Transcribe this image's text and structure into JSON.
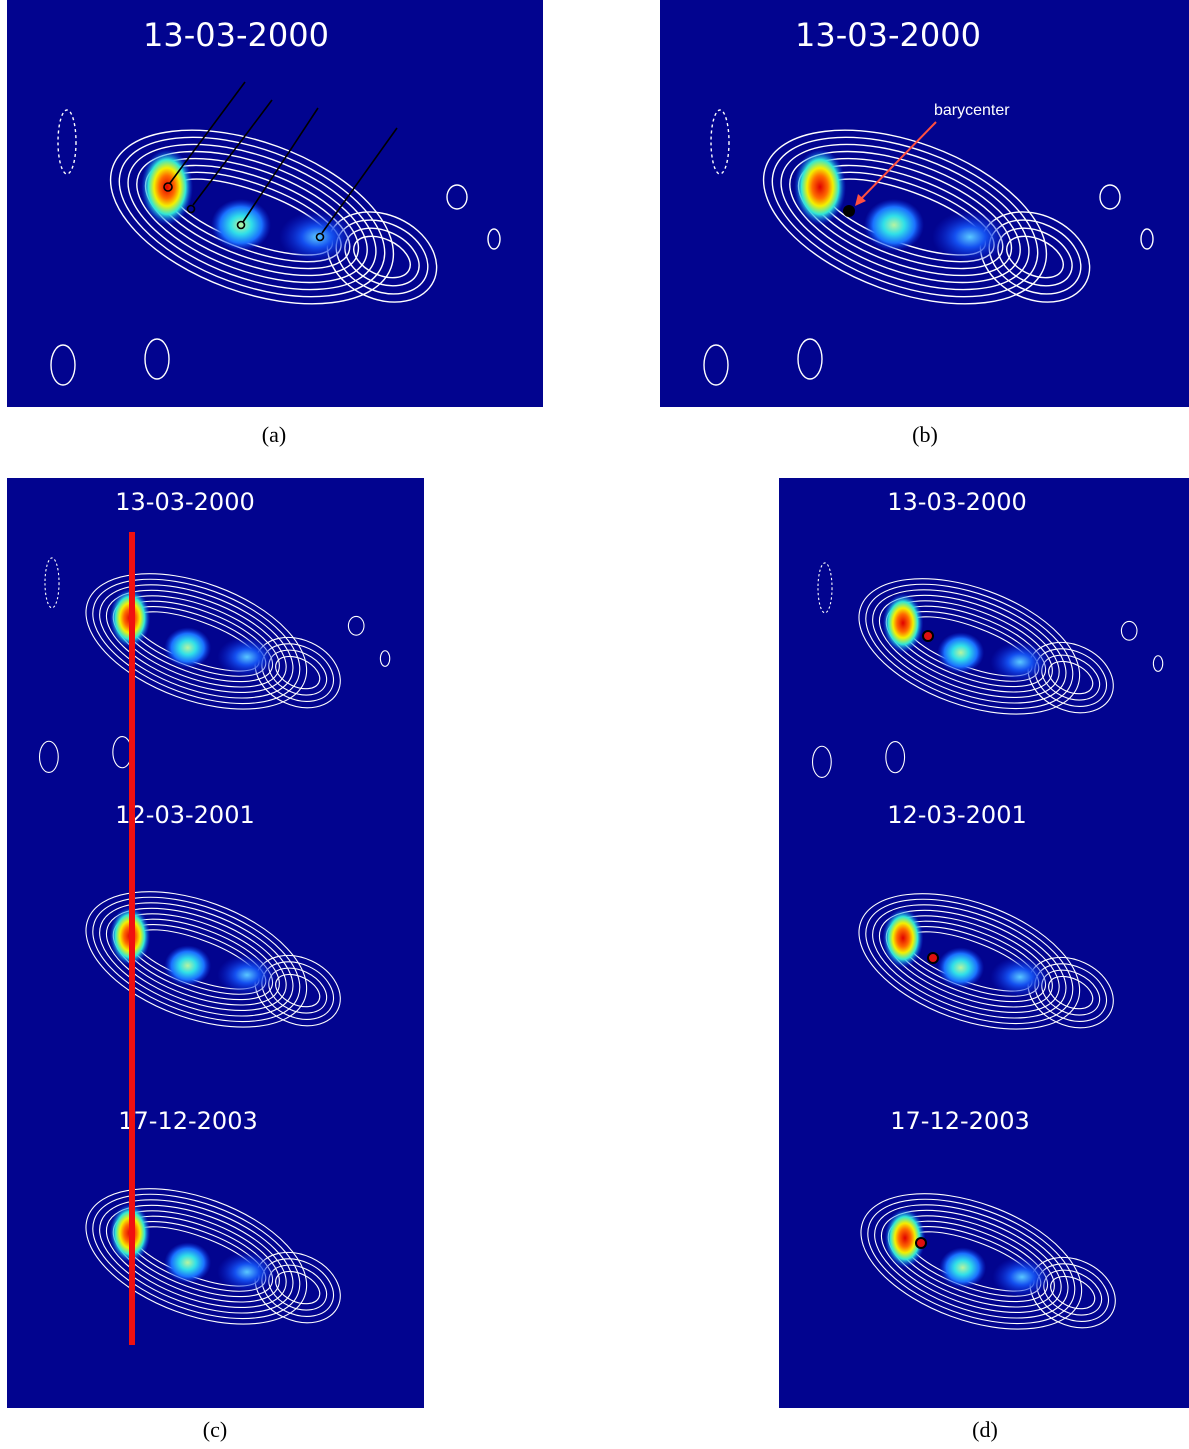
{
  "panels": [
    {
      "caption": "(a)",
      "dates": [
        "13-03-2000"
      ]
    },
    {
      "caption": "(b)",
      "dates": [
        "13-03-2000"
      ],
      "annotation": "barycenter"
    },
    {
      "caption": "(c)",
      "dates": [
        "13-03-2000",
        "12-03-2001",
        "17-12-2003"
      ]
    },
    {
      "caption": "(d)",
      "dates": [
        "13-03-2000",
        "12-03-2001",
        "17-12-2003"
      ]
    }
  ]
}
